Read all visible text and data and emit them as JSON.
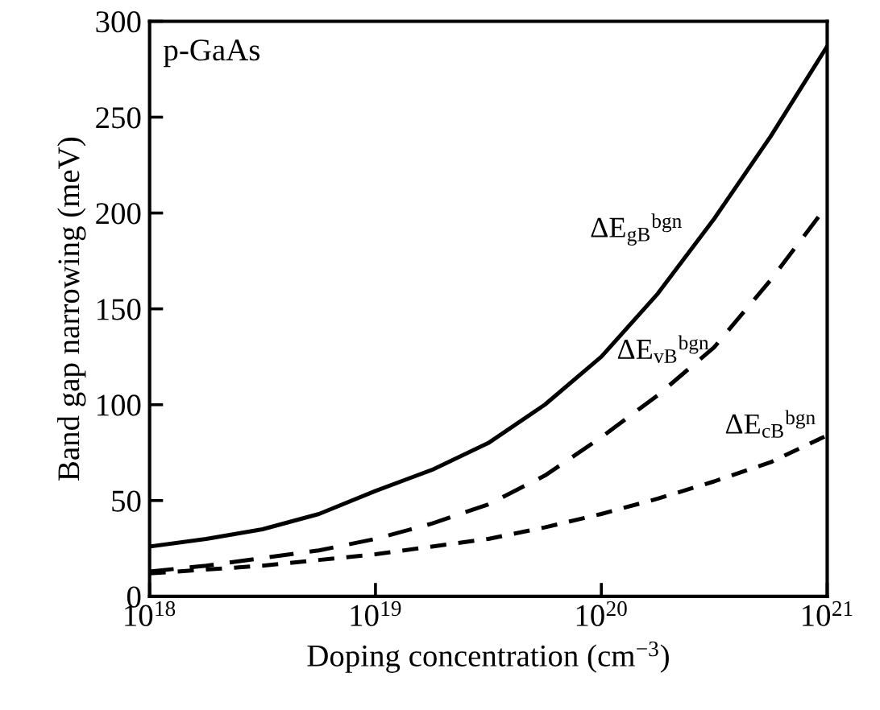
{
  "chart_data": {
    "type": "line",
    "xlabel": "Doping concentration (cm$^{−3}$)",
    "ylabel": "Band gap narrowing (meV)",
    "annotations": [
      "p-GaAs"
    ],
    "log": "x",
    "grid": false,
    "legend": false,
    "marker": "none",
    "x": [
      1e+18,
      1.78e+18,
      3.16e+18,
      5.62e+18,
      1e+19,
      1.78e+19,
      3.16e+19,
      5.62e+19,
      1e+20,
      1.78e+20,
      3.16e+20,
      5.62e+20,
      1e+21
    ],
    "xlim": [
      1e+18,
      1e+21
    ],
    "xticks": [
      {
        "value": 1e+18,
        "label": "10$^{18}$"
      },
      {
        "value": 1e+19,
        "label": "10$^{19}$"
      },
      {
        "value": 1e+20,
        "label": "10$^{20}$"
      },
      {
        "value": 1e+21,
        "label": "10$^{21}$"
      }
    ],
    "ylim": [
      0,
      300
    ],
    "yticks": [
      0,
      50,
      100,
      150,
      200,
      250,
      300
    ],
    "series": [
      {
        "name": "ΔE$_{gB}$$^{bgn}$",
        "color": "#000000",
        "line_style": "solid",
        "values": [
          26,
          30,
          35,
          43,
          55,
          66,
          80,
          100,
          125,
          158,
          197,
          240,
          287
        ]
      },
      {
        "name": "ΔE$_{vB}$$^{bgn}$",
        "color": "#000000",
        "line_style": "dashed",
        "values": [
          13,
          16,
          20,
          24,
          30,
          38,
          48,
          63,
          83,
          105,
          130,
          165,
          204
        ]
      },
      {
        "name": "ΔE$_{cB}$$^{bgn}$",
        "color": "#000000",
        "line_style": "dashed",
        "values": [
          12,
          14,
          16,
          19,
          22,
          26,
          30,
          36,
          43,
          51,
          60,
          70,
          84
        ]
      }
    ]
  }
}
